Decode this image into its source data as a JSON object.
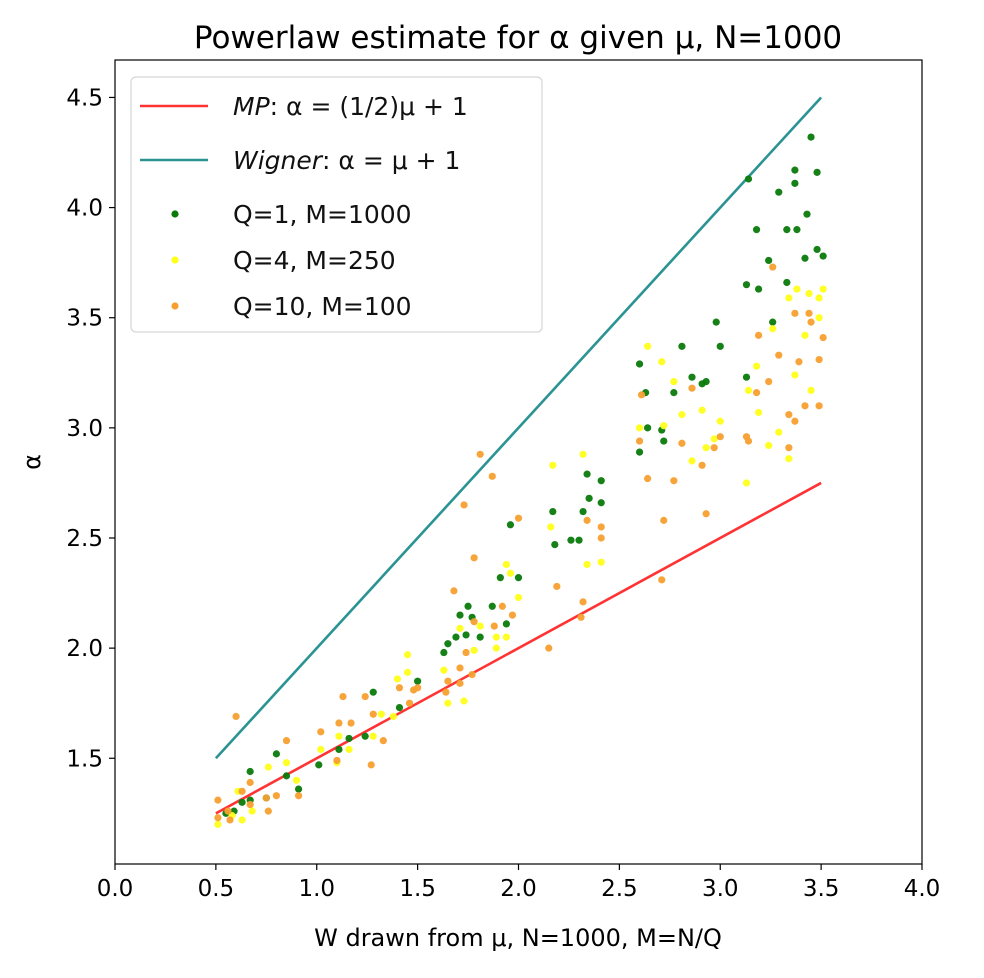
{
  "chart_data": {
    "type": "scatter",
    "title": "Powerlaw estimate for α given μ, N=1000",
    "xlabel": "W drawn from μ, N=1000, M=N/Q",
    "ylabel": "α",
    "xlim": [
      0.0,
      4.0
    ],
    "ylim": [
      1.02,
      4.67
    ],
    "xticks": [
      "0.0",
      "0.5",
      "1.0",
      "1.5",
      "2.0",
      "2.5",
      "3.0",
      "3.5",
      "4.0"
    ],
    "yticks": [
      "1.5",
      "2.0",
      "2.5",
      "3.0",
      "3.5",
      "4.0",
      "4.5"
    ],
    "grid": false,
    "legend_position": "top-left",
    "lines": [
      {
        "name": "MP",
        "label_italic": "MP",
        "label_rest": ": α = (1/2)μ + 1",
        "color": "#ff3333",
        "x": [
          0.5,
          3.5
        ],
        "y": [
          1.25,
          2.75
        ]
      },
      {
        "name": "Wigner",
        "label_italic": "Wigner",
        "label_rest": ": α = μ + 1",
        "color": "#2b9393",
        "x": [
          0.5,
          3.5
        ],
        "y": [
          1.5,
          4.5
        ]
      }
    ],
    "series": [
      {
        "name": "Q=1, M=1000",
        "color": "#0a7a0a",
        "points": [
          [
            3.14,
            4.13
          ],
          [
            3.45,
            4.32
          ],
          [
            3.37,
            4.17
          ],
          [
            3.37,
            4.11
          ],
          [
            3.48,
            4.16
          ],
          [
            3.29,
            4.07
          ],
          [
            3.43,
            3.97
          ],
          [
            3.18,
            3.9
          ],
          [
            3.33,
            3.9
          ],
          [
            3.38,
            3.9
          ],
          [
            3.24,
            3.76
          ],
          [
            3.42,
            3.77
          ],
          [
            3.48,
            3.81
          ],
          [
            3.51,
            3.78
          ],
          [
            3.13,
            3.65
          ],
          [
            3.19,
            3.63
          ],
          [
            3.33,
            3.66
          ],
          [
            3.13,
            3.23
          ],
          [
            3.26,
            3.48
          ],
          [
            2.98,
            3.48
          ],
          [
            3.0,
            3.37
          ],
          [
            2.81,
            3.37
          ],
          [
            2.6,
            3.29
          ],
          [
            2.63,
            3.16
          ],
          [
            2.77,
            3.16
          ],
          [
            2.86,
            3.23
          ],
          [
            2.91,
            3.2
          ],
          [
            2.93,
            3.21
          ],
          [
            2.64,
            3.0
          ],
          [
            2.71,
            2.99
          ],
          [
            2.72,
            2.94
          ],
          [
            2.6,
            2.89
          ],
          [
            2.34,
            2.79
          ],
          [
            2.41,
            2.76
          ],
          [
            2.35,
            2.68
          ],
          [
            2.41,
            2.66
          ],
          [
            2.32,
            2.62
          ],
          [
            2.3,
            2.49
          ],
          [
            2.17,
            2.62
          ],
          [
            2.18,
            2.47
          ],
          [
            2.26,
            2.49
          ],
          [
            1.96,
            2.56
          ],
          [
            1.91,
            2.32
          ],
          [
            2.0,
            2.32
          ],
          [
            1.75,
            2.19
          ],
          [
            1.71,
            2.15
          ],
          [
            1.77,
            2.14
          ],
          [
            1.87,
            2.19
          ],
          [
            1.94,
            2.11
          ],
          [
            1.65,
            2.02
          ],
          [
            1.63,
            1.98
          ],
          [
            1.69,
            2.05
          ],
          [
            1.74,
            2.06
          ],
          [
            1.81,
            2.05
          ],
          [
            1.28,
            1.8
          ],
          [
            1.5,
            1.85
          ],
          [
            1.41,
            1.73
          ],
          [
            1.24,
            1.6
          ],
          [
            1.16,
            1.59
          ],
          [
            1.11,
            1.54
          ],
          [
            1.01,
            1.47
          ],
          [
            0.8,
            1.52
          ],
          [
            0.67,
            1.44
          ],
          [
            0.91,
            1.36
          ],
          [
            0.85,
            1.42
          ],
          [
            0.63,
            1.3
          ],
          [
            0.59,
            1.26
          ],
          [
            0.55,
            1.25
          ],
          [
            0.67,
            1.31
          ],
          [
            0.75,
            1.32
          ]
        ]
      },
      {
        "name": "Q=4, M=250",
        "color": "#ffff1a",
        "points": [
          [
            2.64,
            3.37
          ],
          [
            2.71,
            3.3
          ],
          [
            2.77,
            3.21
          ],
          [
            2.6,
            3.0
          ],
          [
            2.72,
            3.01
          ],
          [
            2.81,
            3.06
          ],
          [
            2.91,
            3.08
          ],
          [
            3.0,
            3.03
          ],
          [
            2.93,
            2.91
          ],
          [
            2.86,
            2.85
          ],
          [
            2.97,
            2.95
          ],
          [
            3.13,
            2.75
          ],
          [
            3.18,
            3.28
          ],
          [
            3.14,
            3.17
          ],
          [
            3.19,
            3.07
          ],
          [
            3.24,
            2.92
          ],
          [
            3.29,
            2.98
          ],
          [
            3.34,
            2.86
          ],
          [
            3.37,
            3.24
          ],
          [
            3.45,
            3.17
          ],
          [
            3.42,
            3.42
          ],
          [
            3.26,
            3.45
          ],
          [
            3.49,
            3.5
          ],
          [
            3.34,
            3.59
          ],
          [
            3.38,
            3.63
          ],
          [
            3.44,
            3.61
          ],
          [
            3.49,
            3.59
          ],
          [
            3.51,
            3.63
          ],
          [
            2.32,
            2.88
          ],
          [
            2.34,
            2.38
          ],
          [
            2.41,
            2.39
          ],
          [
            2.17,
            2.83
          ],
          [
            2.16,
            2.55
          ],
          [
            1.94,
            2.38
          ],
          [
            1.96,
            2.34
          ],
          [
            2.0,
            2.23
          ],
          [
            1.89,
            2.05
          ],
          [
            1.94,
            2.05
          ],
          [
            1.89,
            2.0
          ],
          [
            1.71,
            2.09
          ],
          [
            1.81,
            2.1
          ],
          [
            1.45,
            1.97
          ],
          [
            1.45,
            1.89
          ],
          [
            1.4,
            1.86
          ],
          [
            1.63,
            1.9
          ],
          [
            1.73,
            1.76
          ],
          [
            1.65,
            1.75
          ],
          [
            1.11,
            1.6
          ],
          [
            1.32,
            1.7
          ],
          [
            1.02,
            1.54
          ],
          [
            1.1,
            1.48
          ],
          [
            1.16,
            1.54
          ],
          [
            0.85,
            1.48
          ],
          [
            0.76,
            1.46
          ],
          [
            0.9,
            1.4
          ],
          [
            0.61,
            1.35
          ],
          [
            0.68,
            1.26
          ],
          [
            0.63,
            1.22
          ],
          [
            0.51,
            1.2
          ],
          [
            0.58,
            1.24
          ],
          [
            1.28,
            1.6
          ],
          [
            1.38,
            1.69
          ],
          [
            1.78,
            1.99
          ]
        ]
      },
      {
        "name": "Q=10, M=100",
        "color": "#f7a030",
        "points": [
          [
            3.26,
            3.73
          ],
          [
            3.37,
            3.52
          ],
          [
            3.44,
            3.52
          ],
          [
            3.45,
            3.48
          ],
          [
            3.19,
            3.42
          ],
          [
            3.51,
            3.41
          ],
          [
            3.29,
            3.33
          ],
          [
            3.39,
            3.3
          ],
          [
            3.49,
            3.31
          ],
          [
            3.24,
            3.21
          ],
          [
            3.18,
            3.16
          ],
          [
            3.42,
            3.1
          ],
          [
            3.49,
            3.1
          ],
          [
            3.34,
            3.06
          ],
          [
            3.37,
            3.03
          ],
          [
            3.34,
            2.91
          ],
          [
            3.13,
            2.96
          ],
          [
            3.14,
            2.94
          ],
          [
            3.0,
            2.96
          ],
          [
            2.97,
            2.91
          ],
          [
            2.81,
            2.93
          ],
          [
            2.91,
            2.83
          ],
          [
            2.86,
            3.18
          ],
          [
            2.61,
            3.15
          ],
          [
            2.6,
            2.94
          ],
          [
            2.64,
            2.77
          ],
          [
            2.77,
            2.76
          ],
          [
            2.72,
            2.58
          ],
          [
            2.93,
            2.61
          ],
          [
            2.71,
            2.31
          ],
          [
            2.34,
            2.58
          ],
          [
            2.41,
            2.55
          ],
          [
            2.41,
            2.5
          ],
          [
            2.32,
            2.21
          ],
          [
            2.31,
            2.14
          ],
          [
            2.15,
            2.0
          ],
          [
            2.19,
            2.28
          ],
          [
            1.81,
            2.88
          ],
          [
            1.87,
            2.78
          ],
          [
            1.73,
            2.65
          ],
          [
            2.0,
            2.59
          ],
          [
            1.78,
            2.41
          ],
          [
            1.68,
            2.26
          ],
          [
            1.92,
            2.19
          ],
          [
            1.97,
            2.15
          ],
          [
            1.88,
            2.1
          ],
          [
            1.78,
            2.12
          ],
          [
            1.74,
            1.98
          ],
          [
            1.71,
            1.91
          ],
          [
            1.77,
            1.88
          ],
          [
            1.65,
            1.85
          ],
          [
            1.71,
            1.84
          ],
          [
            1.64,
            1.8
          ],
          [
            1.48,
            1.81
          ],
          [
            1.5,
            1.82
          ],
          [
            1.46,
            1.75
          ],
          [
            1.41,
            1.82
          ],
          [
            1.13,
            1.78
          ],
          [
            1.24,
            1.78
          ],
          [
            1.28,
            1.7
          ],
          [
            1.33,
            1.58
          ],
          [
            1.27,
            1.47
          ],
          [
            1.11,
            1.66
          ],
          [
            1.17,
            1.66
          ],
          [
            1.02,
            1.62
          ],
          [
            0.85,
            1.58
          ],
          [
            0.6,
            1.69
          ],
          [
            1.1,
            1.49
          ],
          [
            0.91,
            1.33
          ],
          [
            0.8,
            1.33
          ],
          [
            0.76,
            1.26
          ],
          [
            0.67,
            1.29
          ],
          [
            0.63,
            1.35
          ],
          [
            0.51,
            1.31
          ],
          [
            0.56,
            1.26
          ],
          [
            0.51,
            1.23
          ],
          [
            0.57,
            1.22
          ],
          [
            0.67,
            1.39
          ],
          [
            0.75,
            1.32
          ]
        ]
      }
    ]
  }
}
